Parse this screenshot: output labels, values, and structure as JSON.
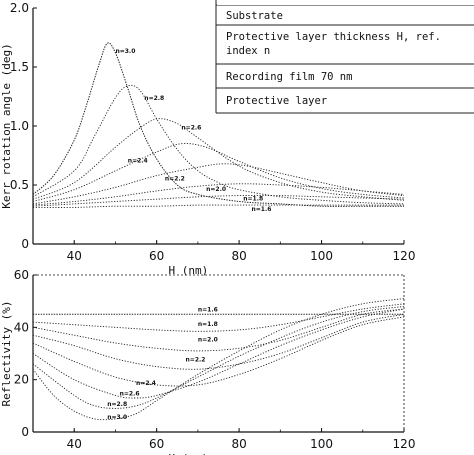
{
  "chart_data": [
    {
      "type": "line",
      "xlabel": "H  (nm)",
      "ylabel": "Kerr rotation angle (deg)",
      "xlim": [
        30,
        120
      ],
      "ylim": [
        0,
        2.0
      ],
      "xticks": [
        "40",
        "60",
        "80",
        "100",
        "120"
      ],
      "yticks": [
        "0",
        "0.5",
        "1.0",
        "1.5",
        "2.0"
      ],
      "grid": false,
      "legend_placement": "top-right",
      "legend_box": [
        "Substrate",
        "Protective layer thickness H, ref. index n",
        "Recording film 70 nm",
        "Protective layer"
      ],
      "series": [
        {
          "name": "n=3.0",
          "x": [
            30,
            35,
            40,
            43,
            46,
            48,
            50,
            53,
            56,
            60,
            65,
            70,
            80,
            90,
            100,
            110,
            120
          ],
          "y": [
            0.42,
            0.58,
            0.88,
            1.18,
            1.52,
            1.7,
            1.62,
            1.32,
            1.0,
            0.72,
            0.5,
            0.42,
            0.36,
            0.34,
            0.32,
            0.32,
            0.32
          ]
        },
        {
          "name": "n=2.8",
          "x": [
            30,
            40,
            45,
            50,
            53,
            56,
            60,
            65,
            70,
            75,
            80,
            90,
            100,
            110,
            120
          ],
          "y": [
            0.4,
            0.62,
            0.92,
            1.24,
            1.34,
            1.3,
            1.06,
            0.8,
            0.62,
            0.52,
            0.46,
            0.4,
            0.37,
            0.35,
            0.34
          ]
        },
        {
          "name": "n=2.6",
          "x": [
            30,
            40,
            50,
            55,
            60,
            65,
            70,
            80,
            90,
            100,
            110,
            120
          ],
          "y": [
            0.38,
            0.52,
            0.82,
            0.96,
            1.06,
            1.02,
            0.9,
            0.66,
            0.52,
            0.44,
            0.4,
            0.37
          ]
        },
        {
          "name": "n=2.4",
          "x": [
            30,
            40,
            50,
            60,
            66,
            72,
            80,
            90,
            100,
            110,
            120
          ],
          "y": [
            0.36,
            0.46,
            0.62,
            0.78,
            0.85,
            0.82,
            0.7,
            0.56,
            0.47,
            0.42,
            0.39
          ]
        },
        {
          "name": "n=2.2",
          "x": [
            30,
            40,
            50,
            60,
            70,
            76,
            82,
            90,
            100,
            110,
            120
          ],
          "y": [
            0.34,
            0.4,
            0.48,
            0.58,
            0.65,
            0.68,
            0.66,
            0.6,
            0.52,
            0.45,
            0.41
          ]
        },
        {
          "name": "n=2.0",
          "x": [
            30,
            40,
            50,
            60,
            70,
            80,
            90,
            100,
            110,
            120
          ],
          "y": [
            0.33,
            0.36,
            0.4,
            0.45,
            0.49,
            0.51,
            0.5,
            0.48,
            0.45,
            0.42
          ]
        },
        {
          "name": "n=1.8",
          "x": [
            30,
            40,
            50,
            60,
            70,
            80,
            90,
            100,
            110,
            120
          ],
          "y": [
            0.32,
            0.34,
            0.36,
            0.38,
            0.4,
            0.41,
            0.41,
            0.4,
            0.39,
            0.38
          ]
        },
        {
          "name": "n=1.6",
          "x": [
            30,
            40,
            50,
            60,
            70,
            80,
            90,
            100,
            110,
            120
          ],
          "y": [
            0.31,
            0.31,
            0.32,
            0.32,
            0.33,
            0.33,
            0.33,
            0.33,
            0.33,
            0.33
          ]
        }
      ],
      "label_points": {
        "n=3.0": [
          50,
          1.62
        ],
        "n=2.8": [
          57,
          1.22
        ],
        "n=2.6": [
          66,
          0.97
        ],
        "n=2.4": [
          53,
          0.69
        ],
        "n=2.2": [
          62,
          0.54
        ],
        "n=2.0": [
          72,
          0.45
        ],
        "n=1.8": [
          81,
          0.37
        ],
        "n=1.6": [
          83,
          0.28
        ]
      }
    },
    {
      "type": "line",
      "xlabel": "H  (nm)",
      "ylabel": "Reflectivity (%)",
      "xlim": [
        30,
        120
      ],
      "ylim": [
        0,
        60
      ],
      "xticks": [
        "40",
        "60",
        "80",
        "100",
        "120"
      ],
      "yticks": [
        "0",
        "20",
        "40",
        "60"
      ],
      "grid": false,
      "series": [
        {
          "name": "n=1.6",
          "x": [
            30,
            40,
            50,
            60,
            70,
            80,
            90,
            100,
            110,
            120
          ],
          "y": [
            45,
            45,
            45,
            45,
            45,
            45,
            45,
            45,
            45,
            45
          ]
        },
        {
          "name": "n=1.8",
          "x": [
            30,
            40,
            50,
            60,
            70,
            80,
            90,
            100,
            110,
            120
          ],
          "y": [
            42,
            41,
            40,
            39,
            38.5,
            39,
            41,
            44,
            47,
            49
          ]
        },
        {
          "name": "n=2.0",
          "x": [
            30,
            40,
            50,
            60,
            70,
            80,
            90,
            100,
            110,
            120
          ],
          "y": [
            40,
            37,
            34,
            32,
            31,
            32,
            35,
            40,
            45,
            47
          ]
        },
        {
          "name": "n=2.2",
          "x": [
            30,
            40,
            50,
            60,
            70,
            80,
            90,
            100,
            110,
            120
          ],
          "y": [
            37,
            33,
            28,
            25,
            24,
            26,
            30,
            36,
            42,
            45
          ]
        },
        {
          "name": "n=2.4",
          "x": [
            30,
            40,
            50,
            60,
            70,
            80,
            90,
            100,
            110,
            120
          ],
          "y": [
            34,
            27,
            21,
            18,
            18,
            22,
            28,
            35,
            41,
            44
          ]
        },
        {
          "name": "n=2.6",
          "x": [
            30,
            40,
            50,
            55,
            60,
            70,
            80,
            90,
            100,
            110,
            120
          ],
          "y": [
            30,
            20,
            14,
            13,
            14,
            19,
            26,
            33,
            39,
            44,
            47
          ]
        },
        {
          "name": "n=2.8",
          "x": [
            30,
            40,
            45,
            50,
            55,
            60,
            70,
            80,
            90,
            100,
            110,
            120
          ],
          "y": [
            26,
            14,
            10,
            9,
            10,
            13,
            21,
            29,
            36,
            42,
            46,
            48
          ]
        },
        {
          "name": "n=3.0",
          "x": [
            30,
            35,
            40,
            45,
            50,
            55,
            60,
            70,
            80,
            90,
            100,
            110,
            120
          ],
          "y": [
            24,
            14,
            8,
            5,
            5,
            7,
            12,
            22,
            31,
            39,
            45,
            49,
            51
          ]
        }
      ],
      "label_points": {
        "n=1.6": [
          70,
          46
        ],
        "n=1.8": [
          70,
          40.5
        ],
        "n=2.0": [
          70,
          34.5
        ],
        "n=2.2": [
          67,
          27
        ],
        "n=2.4": [
          55,
          18
        ],
        "n=2.6": [
          51,
          14
        ],
        "n=2.8": [
          48,
          10
        ],
        "n=3.0": [
          48,
          5
        ]
      }
    }
  ]
}
